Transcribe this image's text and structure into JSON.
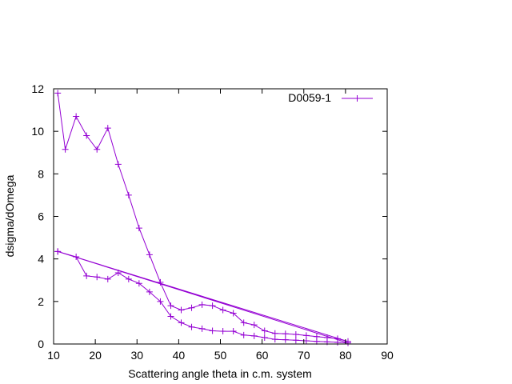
{
  "chart_data": {
    "type": "line",
    "title": "",
    "xlabel": "Scattering angle theta in c.m. system",
    "ylabel": "dsigma/dOmega",
    "xlim": [
      10,
      90
    ],
    "ylim": [
      0,
      12
    ],
    "xticks": [
      10,
      20,
      30,
      40,
      50,
      60,
      70,
      80,
      90
    ],
    "yticks": [
      0,
      2,
      4,
      6,
      8,
      10,
      12
    ],
    "grid": false,
    "legend_position": "top-right",
    "series": [
      {
        "name": "D0059-1",
        "color": "#9400d3",
        "marker": "plus",
        "x": [
          11.0,
          12.8,
          15.4,
          17.9,
          20.4,
          23.0,
          25.5,
          28.0,
          30.5,
          33.0,
          35.6,
          38.1,
          40.6,
          43.1,
          45.6,
          48.1,
          50.6,
          53.1,
          55.6,
          58.1,
          60.6,
          63.1,
          65.6,
          68.1,
          70.6,
          73.1,
          75.6,
          78.1,
          80.6,
          11.0,
          15.4,
          17.9,
          20.4,
          23.0,
          25.5,
          28.0,
          30.5,
          33.0,
          35.6,
          38.1,
          40.6,
          43.1,
          45.6,
          48.1,
          50.6,
          53.1,
          55.6,
          58.1,
          60.6,
          63.1,
          65.6,
          68.1,
          70.6,
          73.1,
          75.6,
          78.1,
          80.6,
          11.0
        ],
        "y": [
          11.8,
          9.15,
          10.7,
          9.8,
          9.15,
          10.15,
          8.45,
          7.0,
          5.45,
          4.2,
          2.9,
          1.8,
          1.6,
          1.7,
          1.85,
          1.8,
          1.6,
          1.45,
          1.0,
          0.9,
          0.62,
          0.5,
          0.48,
          0.45,
          0.4,
          0.35,
          0.3,
          0.25,
          0.12,
          4.35,
          4.1,
          3.2,
          3.15,
          3.05,
          3.35,
          3.05,
          2.85,
          2.45,
          2.0,
          1.3,
          1.0,
          0.8,
          0.72,
          0.62,
          0.6,
          0.6,
          0.42,
          0.38,
          0.3,
          0.22,
          0.2,
          0.18,
          0.15,
          0.12,
          0.1,
          0.08,
          0.05,
          4.35
        ]
      }
    ]
  }
}
